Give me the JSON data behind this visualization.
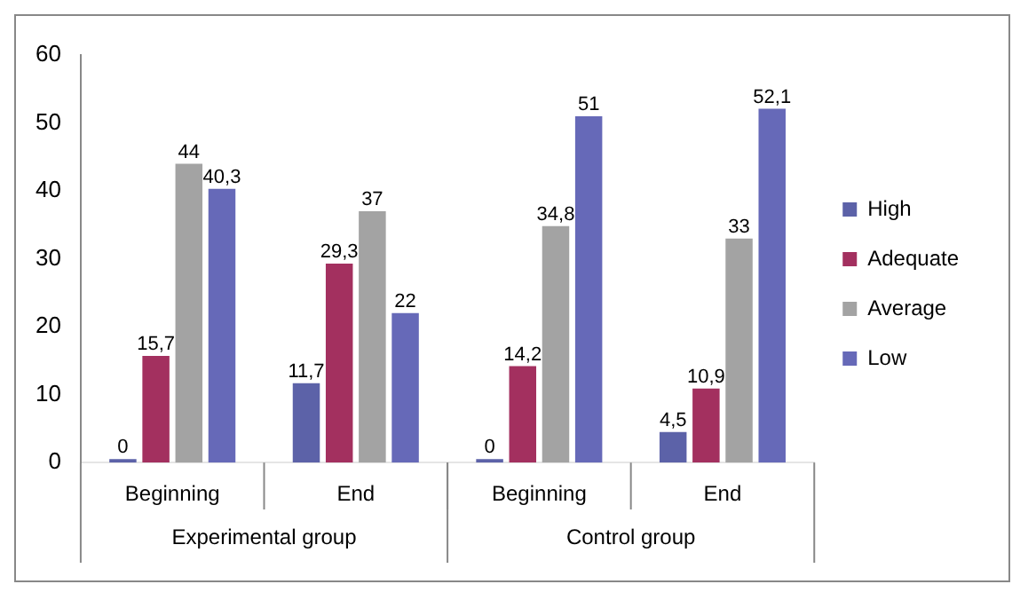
{
  "chart_data": {
    "type": "bar",
    "categories": [
      "Beginning",
      "End",
      "Beginning",
      "End"
    ],
    "series": [
      {
        "name": "High",
        "color": "#5c62a8",
        "values": [
          0,
          11.7,
          0,
          4.5
        ],
        "value_labels": [
          "0",
          "11,7",
          "0",
          "4,5"
        ]
      },
      {
        "name": "Adequate",
        "color": "#a3305f",
        "values": [
          15.7,
          29.3,
          14.2,
          10.9
        ],
        "value_labels": [
          "15,7",
          "29,3",
          "14,2",
          "10,9"
        ]
      },
      {
        "name": "Average",
        "color": "#a3a3a3",
        "values": [
          44,
          37,
          34.8,
          33
        ],
        "value_labels": [
          "44",
          "37",
          "34,8",
          "33"
        ]
      },
      {
        "name": "Low",
        "color": "#6669b8",
        "values": [
          40.3,
          22,
          51,
          52.1
        ],
        "value_labels": [
          "40,3",
          "22",
          "51",
          "52,1"
        ]
      }
    ],
    "annotations": [
      "Experimental group",
      "Control group"
    ],
    "ylim": [
      0,
      60
    ],
    "yticks": [
      0,
      10,
      20,
      30,
      40,
      50,
      60
    ],
    "grid": false,
    "legend": "right"
  }
}
